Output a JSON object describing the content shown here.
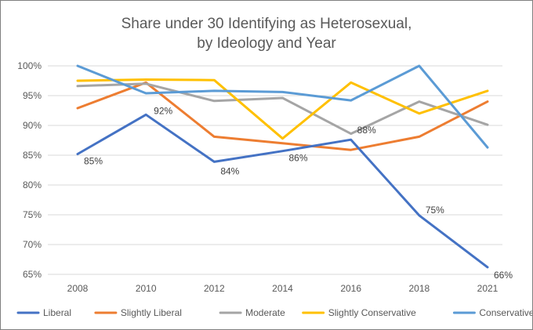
{
  "chart_data": {
    "type": "line",
    "title": [
      "Share under 30 Identifying as Heterosexual,",
      "by Ideology and Year"
    ],
    "xlabel": "",
    "ylabel": "",
    "categories": [
      "2008",
      "2010",
      "2012",
      "2014",
      "2016",
      "2018",
      "2021"
    ],
    "ylim": [
      65,
      100
    ],
    "yticks": [
      65,
      70,
      75,
      80,
      85,
      90,
      95,
      100
    ],
    "ytick_labels": [
      "65%",
      "70%",
      "75%",
      "80%",
      "85%",
      "90%",
      "95%",
      "100%"
    ],
    "grid": true,
    "legend_position": "bottom",
    "series": [
      {
        "name": "Liberal",
        "color": "#4472C4",
        "values": [
          85.2,
          91.8,
          83.9,
          85.7,
          87.6,
          74.9,
          66.2
        ],
        "data_labels": [
          "85%",
          "92%",
          "84%",
          "86%",
          "88%",
          "75%",
          "66%"
        ]
      },
      {
        "name": "Slightly Liberal",
        "color": "#ED7D31",
        "values": [
          92.9,
          97.2,
          88.1,
          87.0,
          85.9,
          88.1,
          94.0
        ]
      },
      {
        "name": "Moderate",
        "color": "#A5A5A5",
        "values": [
          96.6,
          97.0,
          94.1,
          94.6,
          88.6,
          94.0,
          90.1
        ]
      },
      {
        "name": "Slightly Conservative",
        "color": "#FFC000",
        "values": [
          97.5,
          97.7,
          97.6,
          87.8,
          97.2,
          92.0,
          95.8
        ]
      },
      {
        "name": "Conservative",
        "color": "#5B9BD5",
        "values": [
          100.0,
          95.4,
          95.8,
          95.6,
          94.2,
          100.0,
          86.3
        ]
      }
    ]
  }
}
